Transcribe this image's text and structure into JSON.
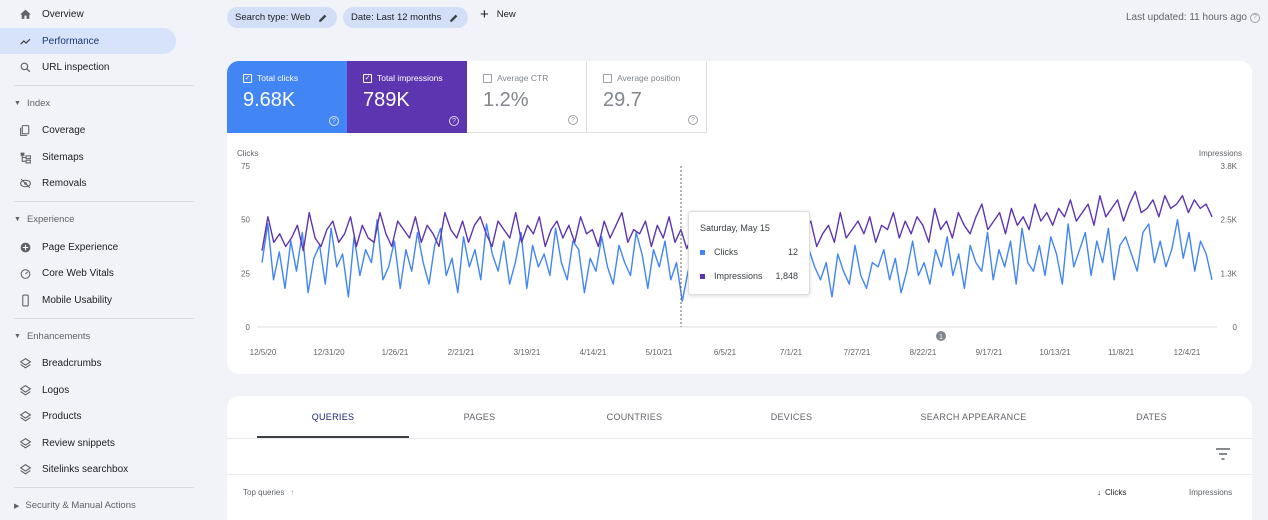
{
  "sidebar": {
    "items": [
      {
        "label": "Overview",
        "icon": "home-icon"
      },
      {
        "label": "Performance",
        "icon": "trending-up-icon",
        "active": true
      },
      {
        "label": "URL inspection",
        "icon": "search-icon"
      }
    ],
    "sections": [
      {
        "title": "Index",
        "items": [
          {
            "label": "Coverage",
            "icon": "coverage-icon"
          },
          {
            "label": "Sitemaps",
            "icon": "sitemap-icon"
          },
          {
            "label": "Removals",
            "icon": "removals-icon"
          }
        ]
      },
      {
        "title": "Experience",
        "items": [
          {
            "label": "Page Experience",
            "icon": "page-experience-icon"
          },
          {
            "label": "Core Web Vitals",
            "icon": "gauge-icon"
          },
          {
            "label": "Mobile Usability",
            "icon": "mobile-icon"
          }
        ]
      },
      {
        "title": "Enhancements",
        "items": [
          {
            "label": "Breadcrumbs",
            "icon": "layers-icon"
          },
          {
            "label": "Logos",
            "icon": "layers-icon"
          },
          {
            "label": "Products",
            "icon": "layers-icon"
          },
          {
            "label": "Review snippets",
            "icon": "layers-icon"
          },
          {
            "label": "Sitelinks searchbox",
            "icon": "layers-icon"
          }
        ]
      },
      {
        "title": "Security & Manual Actions",
        "items": []
      }
    ]
  },
  "toolbar": {
    "chip_search_type": "Search type: Web",
    "chip_date": "Date: Last 12 months",
    "new_label": "New",
    "last_updated": "Last updated: 11 hours ago"
  },
  "metrics": [
    {
      "label": "Total clicks",
      "value": "9.68K",
      "selected": true,
      "color": "#4285f4"
    },
    {
      "label": "Total impressions",
      "value": "789K",
      "selected": true,
      "color": "#5e35b1"
    },
    {
      "label": "Average CTR",
      "value": "1.2%",
      "selected": false
    },
    {
      "label": "Average position",
      "value": "29.7",
      "selected": false
    }
  ],
  "chart": {
    "left_axis_title": "Clicks",
    "right_axis_title": "Impressions",
    "left_ticks": [
      "75",
      "50",
      "25",
      "0"
    ],
    "right_ticks": [
      "3.8K",
      "2.5K",
      "1.3K",
      "0"
    ],
    "x_ticks": [
      "12/5/20",
      "12/31/20",
      "1/26/21",
      "2/21/21",
      "3/19/21",
      "4/14/21",
      "5/10/21",
      "6/5/21",
      "7/1/21",
      "7/27/21",
      "8/22/21",
      "9/17/21",
      "10/13/21",
      "11/8/21",
      "12/4/21"
    ],
    "annotation_marker": "1",
    "tooltip": {
      "date": "Saturday, May 15",
      "clicks_label": "Clicks",
      "clicks_value": "12",
      "impressions_label": "Impressions",
      "impressions_value": "1,848"
    }
  },
  "chart_data": {
    "type": "line",
    "x_start": "12/5/20",
    "x_end": "12/4/21",
    "ylim_left": [
      0,
      75
    ],
    "ylim_right": [
      0,
      3800
    ],
    "series": [
      {
        "name": "Clicks",
        "axis": "left",
        "color": "#4285f4",
        "values": [
          30,
          48,
          22,
          35,
          18,
          40,
          26,
          44,
          16,
          32,
          38,
          20,
          46,
          28,
          34,
          14,
          42,
          24,
          36,
          30,
          50,
          22,
          28,
          40,
          18,
          36,
          26,
          44,
          30,
          20,
          38,
          46,
          24,
          32,
          16,
          42,
          28,
          36,
          22,
          48,
          34,
          26,
          40,
          20,
          30,
          44,
          18,
          38,
          28,
          34,
          24,
          46,
          30,
          22,
          40,
          36,
          16,
          32,
          26,
          42,
          28,
          20,
          38,
          30,
          24,
          44,
          34,
          18,
          36,
          28,
          40,
          22,
          30,
          12,
          26,
          34,
          20,
          38,
          24,
          30,
          18,
          32,
          26,
          36,
          22,
          28,
          16,
          34,
          30,
          24,
          38,
          20,
          26,
          32,
          18,
          36,
          28,
          22,
          30,
          14,
          34,
          26,
          20,
          38,
          24,
          18,
          30,
          28,
          36,
          22,
          32,
          16,
          26,
          40,
          24,
          30,
          20,
          36,
          28,
          42,
          24,
          34,
          18,
          38,
          30,
          26,
          44,
          22,
          36,
          28,
          40,
          20,
          46,
          30,
          26,
          38,
          24,
          42,
          34,
          20,
          48,
          28,
          36,
          44,
          24,
          40,
          30,
          46,
          22,
          38,
          42,
          34,
          26,
          44,
          48,
          30,
          40,
          28,
          36,
          50,
          32,
          44,
          26,
          40,
          34,
          22
        ]
      },
      {
        "name": "Impressions",
        "axis": "right",
        "color": "#5e35b1",
        "values": [
          1800,
          2600,
          2000,
          2200,
          1900,
          2100,
          2400,
          1800,
          2700,
          2100,
          1900,
          2300,
          2500,
          2000,
          2200,
          2600,
          1900,
          2400,
          2100,
          2000,
          2700,
          2200,
          1900,
          2500,
          2300,
          2100,
          2600,
          2000,
          2400,
          2200,
          1900,
          2700,
          2300,
          2100,
          2500,
          2000,
          2400,
          2600,
          2200,
          1900,
          2500,
          2300,
          2100,
          2700,
          2000,
          2400,
          2200,
          2600,
          1900,
          2300,
          2500,
          2100,
          2400,
          2000,
          2600,
          2200,
          2300,
          1900,
          2500,
          2100,
          2400,
          2700,
          2000,
          2300,
          2200,
          2500,
          1900,
          2400,
          2100,
          2600,
          2000,
          2300,
          1848,
          2200,
          2400,
          2100,
          2500,
          1900,
          2300,
          2200,
          2600,
          2000,
          2400,
          2100,
          2300,
          1900,
          2500,
          2200,
          2400,
          2000,
          2600,
          2100,
          2300,
          2500,
          1900,
          2200,
          2400,
          2000,
          2700,
          2100,
          2300,
          2500,
          2200,
          2600,
          2000,
          2400,
          2300,
          2700,
          2100,
          2500,
          2200,
          2600,
          2400,
          2000,
          2800,
          2300,
          2500,
          2100,
          2700,
          2400,
          2200,
          2600,
          2900,
          2300,
          2500,
          2700,
          2200,
          2800,
          2400,
          2600,
          2300,
          2900,
          2500,
          2700,
          2400,
          2800,
          2600,
          3000,
          2500,
          2700,
          2900,
          2400,
          3100,
          2600,
          2800,
          3000,
          2500,
          2900,
          3200,
          2700,
          2800,
          3000,
          2600,
          3100,
          2800,
          2900,
          3100,
          2700,
          3000,
          2800,
          2900,
          2600
        ]
      }
    ]
  },
  "panel": {
    "tabs": [
      "QUERIES",
      "PAGES",
      "COUNTRIES",
      "DEVICES",
      "SEARCH APPEARANCE",
      "DATES"
    ],
    "col_top_queries": "Top queries",
    "col_clicks": "Clicks",
    "col_impressions": "Impressions"
  }
}
